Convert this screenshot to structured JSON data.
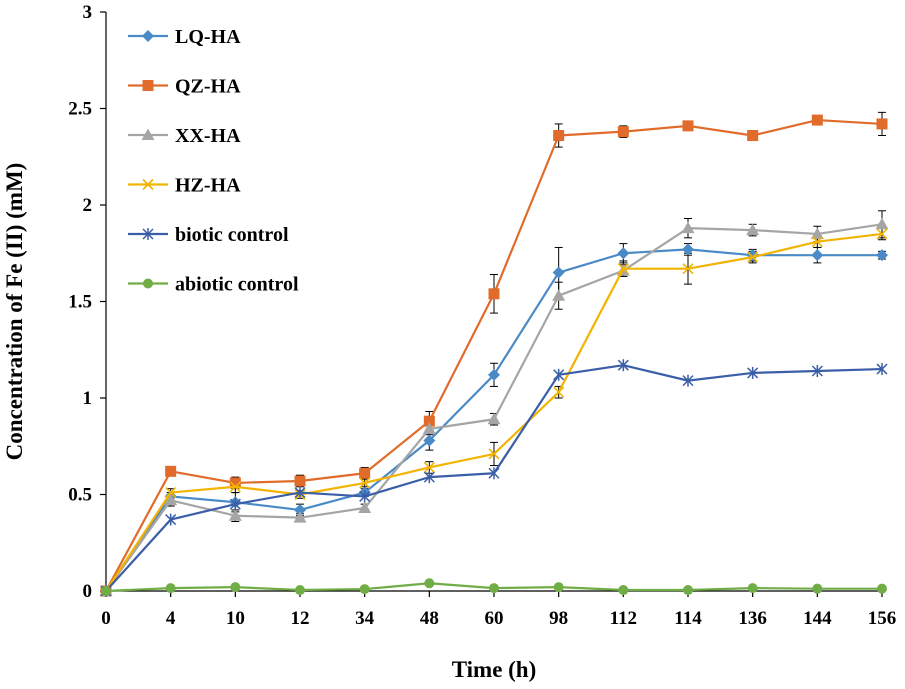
{
  "chart_data": {
    "type": "line",
    "xlabel": "Time (h)",
    "ylabel": "Concentration of  Fe (II) (mM)",
    "ylim": [
      0,
      3
    ],
    "yticks": [
      "0",
      "0.5",
      "1",
      "1.5",
      "2",
      "2.5",
      "3"
    ],
    "yticks_values": [
      0,
      0.5,
      1,
      1.5,
      2,
      2.5,
      3
    ],
    "categories": [
      "0",
      "4",
      "10",
      "12",
      "34",
      "48",
      "60",
      "98",
      "112",
      "114",
      "136",
      "144",
      "156"
    ],
    "legend_position": "top-left",
    "error_bars": true,
    "series": [
      {
        "name": "LQ-HA",
        "marker": "diamond",
        "color": "#4a8ac6",
        "values": [
          0,
          0.49,
          0.46,
          0.42,
          0.51,
          0.78,
          1.12,
          1.65,
          1.75,
          1.77,
          1.74,
          1.74,
          1.74
        ],
        "errors": [
          0,
          0.02,
          0.05,
          0.03,
          0.02,
          0.05,
          0.06,
          0.13,
          0.05,
          0.03,
          0.03,
          0.04,
          0.02
        ]
      },
      {
        "name": "QZ-HA",
        "marker": "square",
        "color": "#e16b2a",
        "values": [
          0,
          0.62,
          0.56,
          0.57,
          0.61,
          0.88,
          1.54,
          2.36,
          2.38,
          2.41,
          2.36,
          2.44,
          2.42
        ],
        "errors": [
          0,
          0.02,
          0.03,
          0.03,
          0.03,
          0.05,
          0.1,
          0.06,
          0.03,
          0.02,
          0.02,
          0.02,
          0.06
        ]
      },
      {
        "name": "XX-HA",
        "marker": "triangle",
        "color": "#a5a5a5",
        "values": [
          0,
          0.47,
          0.39,
          0.38,
          0.43,
          0.84,
          0.89,
          1.53,
          1.66,
          1.88,
          1.87,
          1.85,
          1.9
        ],
        "errors": [
          0,
          0.03,
          0.03,
          0.02,
          0.02,
          0.03,
          0.03,
          0.07,
          0.03,
          0.05,
          0.03,
          0.04,
          0.07
        ]
      },
      {
        "name": "HZ-HA",
        "marker": "x",
        "color": "#f2b400",
        "values": [
          0,
          0.51,
          0.54,
          0.5,
          0.56,
          0.64,
          0.71,
          1.03,
          1.67,
          1.67,
          1.73,
          1.81,
          1.85
        ],
        "errors": [
          0,
          0.02,
          0.03,
          0.02,
          0.02,
          0.03,
          0.06,
          0.03,
          0.04,
          0.08,
          0.03,
          0.03,
          0.03
        ]
      },
      {
        "name": "biotic control",
        "marker": "asterisk",
        "color": "#3b5ea8",
        "values": [
          0,
          0.37,
          0.45,
          0.51,
          0.49,
          0.59,
          0.61,
          1.12,
          1.17,
          1.09,
          1.13,
          1.14,
          1.15
        ],
        "errors": [
          0,
          0,
          0,
          0,
          0,
          0,
          0,
          0,
          0,
          0,
          0,
          0,
          0
        ]
      },
      {
        "name": "abiotic control",
        "marker": "circle",
        "color": "#70ad47",
        "values": [
          0,
          0.015,
          0.02,
          0.005,
          0.01,
          0.04,
          0.015,
          0.02,
          0.005,
          0.005,
          0.015,
          0.012,
          0.012
        ],
        "errors": [
          0,
          0,
          0,
          0,
          0,
          0,
          0,
          0,
          0,
          0,
          0,
          0,
          0
        ]
      }
    ]
  }
}
